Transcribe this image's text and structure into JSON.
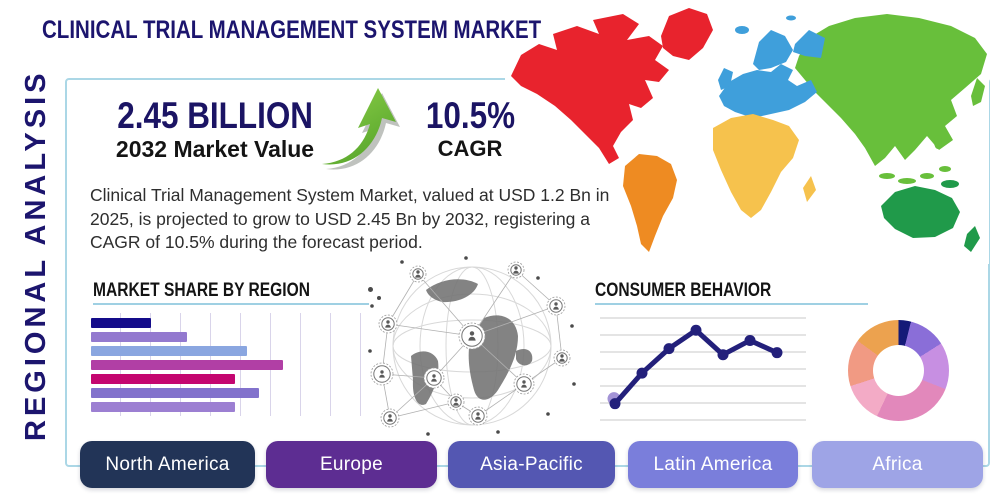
{
  "page": {
    "title": "CLINICAL TRIAL MANAGEMENT SYSTEM MARKET",
    "side_label": "REGIONAL ANALYSIS"
  },
  "stats": {
    "market_value": "2.45 BILLION",
    "market_value_caption": "2032 Market Value",
    "cagr_value": "10.5%",
    "cagr_caption": "CAGR",
    "arrow_icon": "growth-arrow-up-right-icon",
    "arrow_colors": [
      "#8fd14a",
      "#58a62c"
    ],
    "arrow_shadow_color": "#8a9089"
  },
  "description": "Clinical Trial Management System Market, valued at USD 1.2 Bn in 2025, is projected to grow to USD 2.45 Bn by 2032, registering a CAGR of 10.5% during the forecast period.",
  "accent_colors": {
    "title_navy": "#1c156e",
    "heading_black": "#141414",
    "frame_light_blue": "#abd7e6",
    "underline_light_blue": "#9fd0e3"
  },
  "chart_data": [
    {
      "id": "market-share-by-region",
      "type": "bar",
      "orientation": "horizontal",
      "title": "MARKET SHARE BY REGION",
      "categories": [
        "",
        "",
        "",
        "",
        "",
        "",
        ""
      ],
      "values": [
        10,
        16,
        26,
        32,
        24,
        28,
        24
      ],
      "values_note": "estimated from gridlines; axis unlabeled",
      "bar_colors": [
        "#140c8a",
        "#9379cf",
        "#8aa6e0",
        "#b13fa5",
        "#c40670",
        "#8272cc",
        "#9c7fd2"
      ],
      "grid": "vertical",
      "gridline_color": "#d9d4ea"
    },
    {
      "id": "consumer-behavior",
      "type": "line",
      "title": "CONSUMER BEHAVIOR",
      "x": [
        1,
        2,
        3,
        4,
        5,
        6,
        7
      ],
      "values": [
        16,
        46,
        70,
        88,
        64,
        78,
        66
      ],
      "values_note": "estimated; axes unlabeled",
      "ylim": [
        0,
        100
      ],
      "grid": "horizontal",
      "gridline_count": 7,
      "gridline_color": "#c9c9c9",
      "line_color": "#23207b",
      "marker_color": "#23207b",
      "first_marker_halo_color": "#a393d6"
    },
    {
      "id": "regional-share-donut",
      "type": "pie",
      "donut": true,
      "segments": [
        {
          "label": "",
          "value": 4,
          "color": "#141a78"
        },
        {
          "label": "",
          "value": 12,
          "color": "#8a6ed8"
        },
        {
          "label": "",
          "value": 15,
          "color": "#c78fe2"
        },
        {
          "label": "",
          "value": 26,
          "color": "#e288bb"
        },
        {
          "label": "",
          "value": 13,
          "color": "#f3abc6"
        },
        {
          "label": "",
          "value": 15,
          "color": "#f19a83"
        },
        {
          "label": "",
          "value": 15,
          "color": "#eca24f"
        }
      ],
      "values_note": "estimated from arc angles; unlabeled"
    }
  ],
  "map": {
    "name": "world-map-by-region",
    "continent_colors": {
      "north_america": "#e8232d",
      "greenland": "#e8232d",
      "south_america": "#ee8b22",
      "europe": "#3f9fdb",
      "africa": "#f6c24d",
      "asia": "#68bf3b",
      "australia": "#209a4a"
    }
  },
  "region_buttons": [
    {
      "label": "North America",
      "color": "#223457"
    },
    {
      "label": "Europe",
      "color": "#5d2d92"
    },
    {
      "label": "Asia-Pacific",
      "color": "#5457b2"
    },
    {
      "label": "Latin America",
      "color": "#7a7edb"
    },
    {
      "label": "Africa",
      "color": "#9ea4e6"
    }
  ]
}
